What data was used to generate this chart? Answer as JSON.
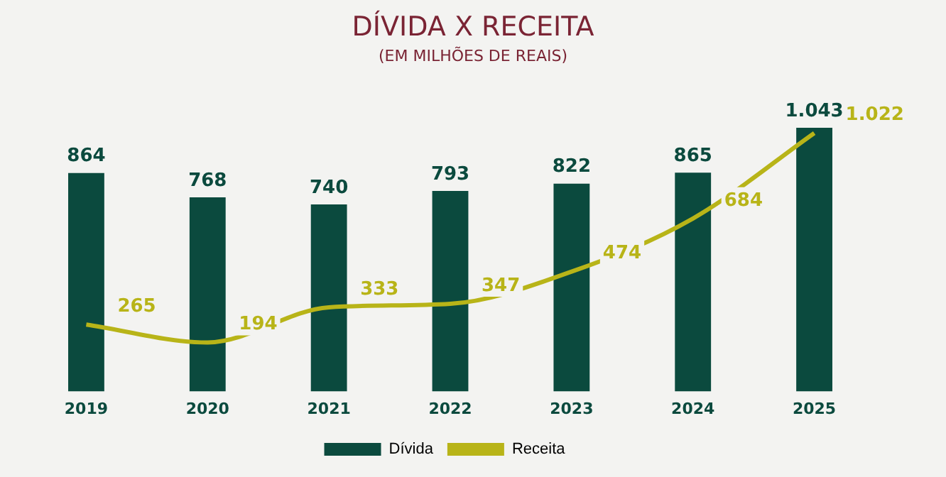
{
  "chart_data": {
    "type": "bar",
    "title": "DÍVIDA X RECEITA",
    "subtitle": "(EM MILHÕES DE REAIS)",
    "categories": [
      "2019",
      "2020",
      "2021",
      "2022",
      "2023",
      "2024",
      "2025"
    ],
    "series": [
      {
        "name": "Dívida",
        "color": "#0b4a3e",
        "values": [
          864,
          768,
          740,
          793,
          822,
          865,
          1043
        ],
        "value_labels": [
          "864",
          "768",
          "740",
          "793",
          "822",
          "865",
          "1.043"
        ]
      },
      {
        "name": "Receita",
        "type": "line",
        "color": "#b8b418",
        "values": [
          265,
          194,
          333,
          347,
          474,
          684,
          1022
        ],
        "value_labels": [
          "265",
          "194",
          "333",
          "347",
          "474",
          "684",
          "1.022"
        ]
      }
    ],
    "relative": false,
    "grid": false,
    "legend": "bottom",
    "marker": "none"
  }
}
